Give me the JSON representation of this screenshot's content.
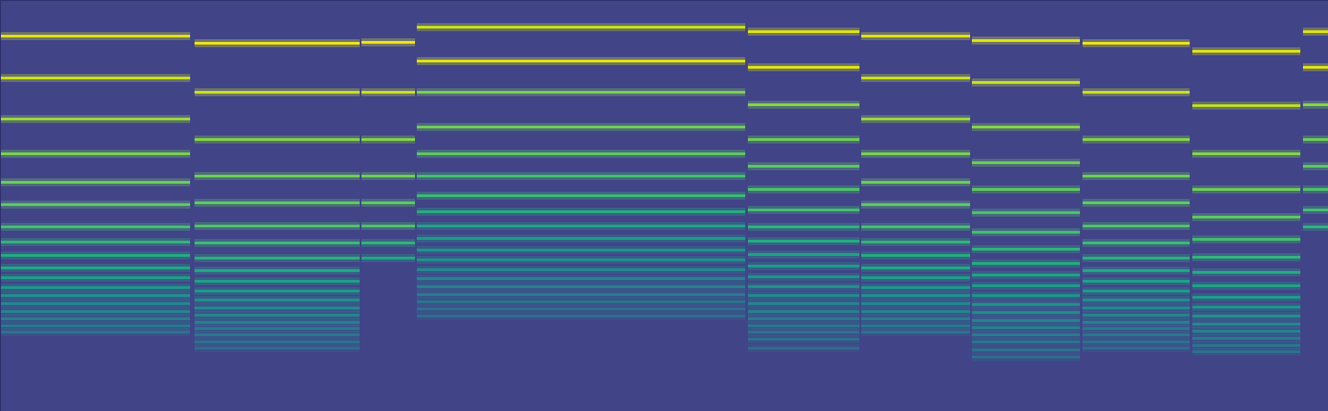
{
  "chart_data": {
    "type": "spectrogram",
    "xlim": [
      0,
      1488
    ],
    "ylim": [
      461,
      0
    ],
    "tick_labels": false,
    "color_range": [
      0,
      1
    ],
    "background": 0.2,
    "segments": [
      {
        "x": [
          0,
          213
        ],
        "harmonics": [
          40,
          87,
          133,
          172,
          204,
          229,
          254,
          271,
          286,
          300,
          311,
          322,
          331,
          340,
          349,
          357,
          365,
          372
        ],
        "levels": [
          0.95,
          0.92,
          0.85,
          0.8,
          0.78,
          0.75,
          0.7,
          0.66,
          0.62,
          0.6,
          0.56,
          0.53,
          0.5,
          0.47,
          0.45,
          0.42,
          0.4,
          0.38
        ]
      },
      {
        "x": [
          218,
          403
        ],
        "harmonics": [
          48,
          103,
          156,
          197,
          227,
          253,
          272,
          289,
          303,
          315,
          326,
          336,
          345,
          353,
          361,
          368,
          375,
          383,
          390
        ],
        "levels": [
          0.97,
          0.92,
          0.82,
          0.78,
          0.75,
          0.72,
          0.68,
          0.64,
          0.6,
          0.57,
          0.54,
          0.5,
          0.48,
          0.45,
          0.43,
          0.41,
          0.39,
          0.37,
          0.35
        ]
      },
      {
        "x": [
          405,
          465
        ],
        "harmonics": [
          47,
          103,
          156,
          197,
          227,
          253,
          272,
          289
        ],
        "levels": [
          0.97,
          0.92,
          0.82,
          0.78,
          0.75,
          0.72,
          0.65,
          0.6
        ]
      },
      {
        "x": [
          467,
          835
        ],
        "harmonics": [
          30,
          68,
          103,
          142,
          172,
          197,
          219,
          237,
          253,
          267,
          280,
          291,
          302,
          312,
          321,
          330,
          338,
          346,
          354
        ],
        "levels": [
          0.92,
          0.95,
          0.8,
          0.78,
          0.75,
          0.7,
          0.68,
          0.62,
          0.58,
          0.55,
          0.52,
          0.5,
          0.47,
          0.45,
          0.43,
          0.41,
          0.39,
          0.37,
          0.35
        ]
      },
      {
        "x": [
          838,
          963
        ],
        "harmonics": [
          35,
          75,
          117,
          156,
          186,
          212,
          235,
          254,
          270,
          285,
          298,
          310,
          321,
          331,
          340,
          349,
          357,
          365,
          372,
          380,
          390
        ],
        "levels": [
          0.95,
          0.95,
          0.82,
          0.78,
          0.75,
          0.72,
          0.7,
          0.65,
          0.62,
          0.58,
          0.55,
          0.52,
          0.5,
          0.48,
          0.45,
          0.43,
          0.41,
          0.39,
          0.37,
          0.36,
          0.34
        ]
      },
      {
        "x": [
          965,
          1087
        ],
        "harmonics": [
          40,
          87,
          133,
          172,
          204,
          229,
          254,
          271,
          286,
          300,
          311,
          322,
          331,
          340,
          349,
          357,
          365,
          372
        ],
        "levels": [
          0.95,
          0.92,
          0.85,
          0.8,
          0.78,
          0.75,
          0.7,
          0.66,
          0.62,
          0.6,
          0.56,
          0.53,
          0.5,
          0.47,
          0.45,
          0.42,
          0.4,
          0.38
        ]
      },
      {
        "x": [
          1089,
          1210
        ],
        "harmonics": [
          45,
          92,
          142,
          182,
          212,
          238,
          260,
          279,
          295,
          308,
          320,
          331,
          341,
          350,
          359,
          367,
          375,
          383,
          392,
          400
        ],
        "levels": [
          0.95,
          0.92,
          0.82,
          0.78,
          0.75,
          0.72,
          0.7,
          0.65,
          0.62,
          0.58,
          0.55,
          0.52,
          0.5,
          0.48,
          0.45,
          0.43,
          0.41,
          0.39,
          0.37,
          0.35
        ]
      },
      {
        "x": [
          1213,
          1333
        ],
        "harmonics": [
          48,
          103,
          156,
          197,
          227,
          253,
          272,
          289,
          303,
          315,
          326,
          336,
          345,
          353,
          361,
          368,
          375,
          383,
          390
        ],
        "levels": [
          0.97,
          0.92,
          0.82,
          0.78,
          0.75,
          0.72,
          0.68,
          0.64,
          0.6,
          0.57,
          0.54,
          0.5,
          0.48,
          0.45,
          0.43,
          0.41,
          0.39,
          0.37,
          0.35
        ]
      },
      {
        "x": [
          1336,
          1457
        ],
        "harmonics": [
          57,
          118,
          172,
          212,
          243,
          268,
          288,
          305,
          320,
          333,
          344,
          354,
          363,
          371,
          379,
          387,
          394
        ],
        "levels": [
          0.95,
          0.9,
          0.82,
          0.78,
          0.75,
          0.7,
          0.66,
          0.62,
          0.58,
          0.55,
          0.52,
          0.5,
          0.47,
          0.44,
          0.41,
          0.39,
          0.37
        ]
      },
      {
        "x": [
          1460,
          1488
        ],
        "harmonics": [
          35,
          75,
          117,
          156,
          186,
          212,
          235,
          254
        ],
        "levels": [
          0.95,
          0.95,
          0.82,
          0.78,
          0.75,
          0.72,
          0.7,
          0.65
        ]
      }
    ]
  }
}
